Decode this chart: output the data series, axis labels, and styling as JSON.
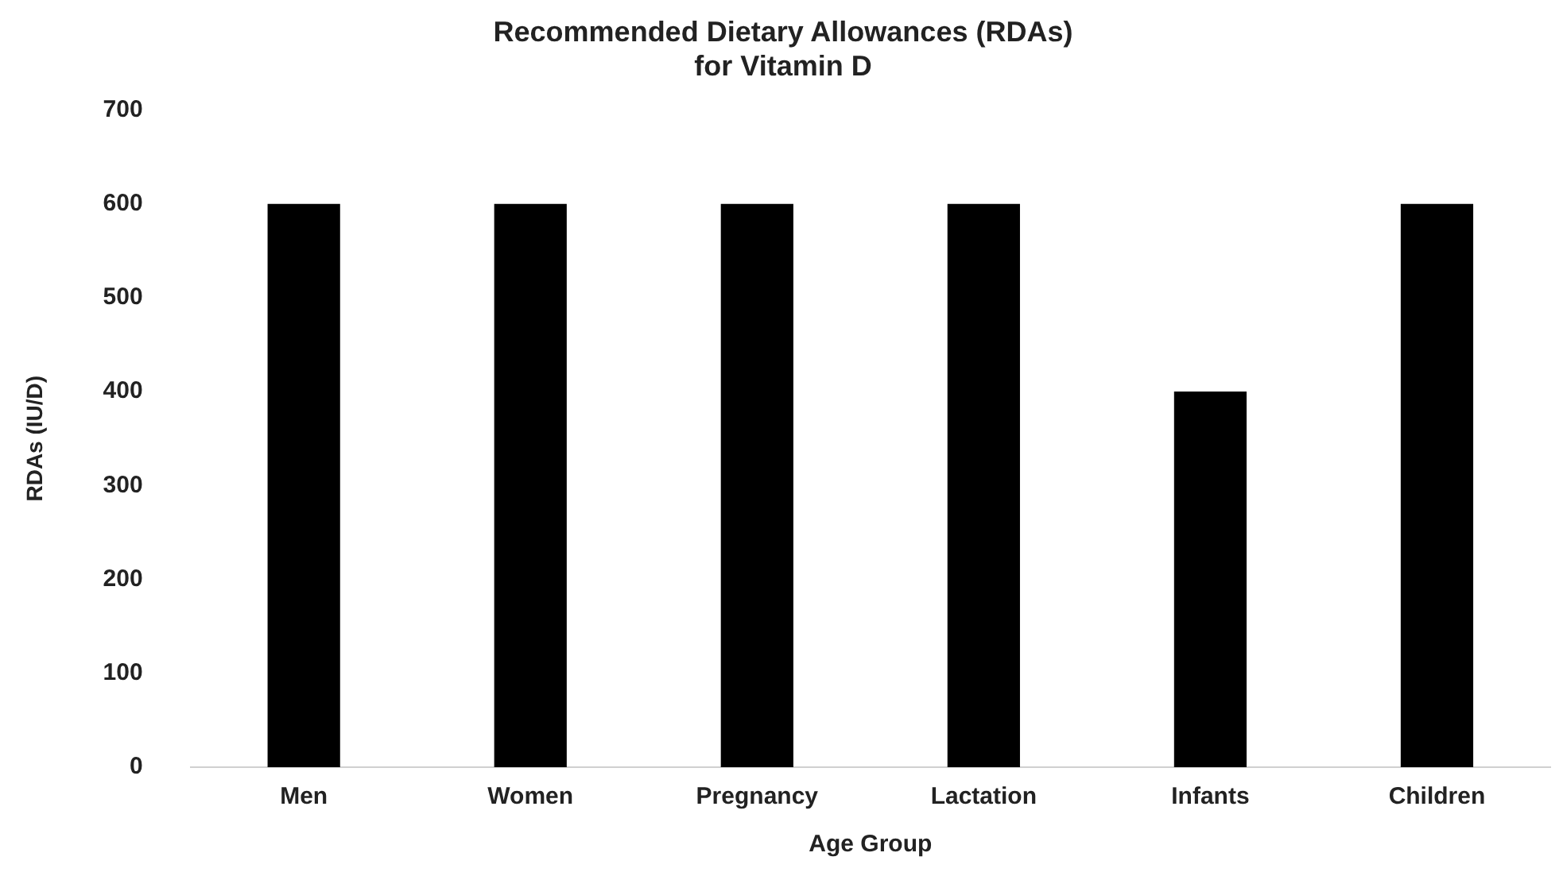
{
  "chart_data": {
    "type": "bar",
    "title": "Recommended Dietary Allowances (RDAs)\nfor Vitamin D",
    "xlabel": "Age Group",
    "ylabel": "RDAs (IU/D)",
    "categories": [
      "Men",
      "Women",
      "Pregnancy",
      "Lactation",
      "Infants",
      "Children"
    ],
    "values": [
      600,
      600,
      600,
      600,
      400,
      600
    ],
    "color": "#000000",
    "ylim": [
      0,
      700
    ],
    "yticks": [
      0,
      100,
      200,
      300,
      400,
      500,
      600,
      700
    ],
    "grid": false,
    "legend": false
  }
}
